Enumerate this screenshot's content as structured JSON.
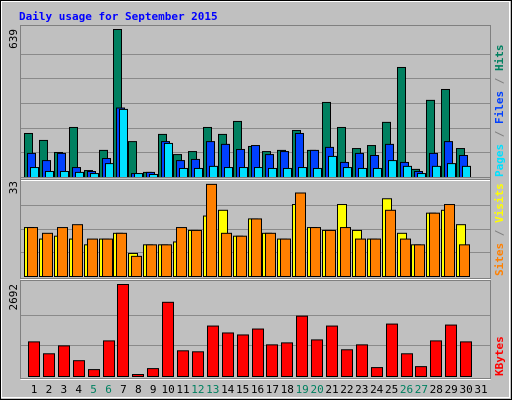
{
  "title": "Daily usage for September 2015",
  "legend_separator": " / ",
  "chart_data": [
    {
      "type": "bar",
      "ylim": [
        0,
        639
      ],
      "yticks": [
        639
      ],
      "grid_divisions": 6,
      "series": [
        {
          "name": "Pages",
          "color": "#00e0ff",
          "values": [
            43,
            26,
            26,
            22,
            17,
            60,
            294,
            17,
            13,
            147,
            39,
            39,
            48,
            43,
            43,
            43,
            39,
            39,
            43,
            39,
            91,
            43,
            39,
            39,
            73,
            48,
            17,
            48,
            60,
            48,
            0
          ]
        },
        {
          "name": "Files",
          "color": "#0040ff",
          "values": [
            104,
            73,
            104,
            43,
            26,
            82,
            300,
            17,
            22,
            155,
            73,
            78,
            155,
            143,
            121,
            138,
            99,
            112,
            190,
            117,
            130,
            65,
            104,
            95,
            143,
            65,
            26,
            104,
            155,
            95,
            0
          ]
        },
        {
          "name": "Hits",
          "color": "#008060",
          "values": [
            190,
            160,
            108,
            216,
            30,
            117,
            639,
            155,
            22,
            186,
            99,
            112,
            216,
            186,
            242,
            134,
            112,
            117,
            203,
            117,
            324,
            216,
            125,
            138,
            238,
            475,
            35,
            333,
            380,
            125,
            0
          ]
        }
      ]
    },
    {
      "type": "bar",
      "ylim": [
        0,
        33
      ],
      "yticks": [
        33
      ],
      "grid_divisions": 4,
      "series": [
        {
          "name": "Sites",
          "color": "#ff8000",
          "values": [
            17,
            15,
            17,
            18,
            13,
            13,
            15,
            7,
            11,
            11,
            17,
            16,
            32,
            15,
            14,
            20,
            15,
            13,
            29,
            17,
            16,
            17,
            13,
            13,
            23,
            13,
            11,
            22,
            25,
            11,
            0
          ]
        },
        {
          "name": "Visits",
          "color": "#ffff00",
          "values": [
            17,
            13,
            14,
            13,
            11,
            13,
            15,
            8,
            11,
            11,
            12,
            16,
            21,
            23,
            14,
            20,
            15,
            13,
            25,
            17,
            16,
            25,
            16,
            13,
            27,
            15,
            11,
            22,
            23,
            18,
            0
          ]
        }
      ]
    },
    {
      "type": "bar",
      "ylim": [
        0,
        2692
      ],
      "yticks": [
        2692
      ],
      "grid_divisions": 3,
      "categories": [
        "1",
        "2",
        "3",
        "4",
        "5",
        "6",
        "7",
        "8",
        "9",
        "10",
        "11",
        "12",
        "13",
        "14",
        "15",
        "16",
        "17",
        "18",
        "19",
        "20",
        "21",
        "22",
        "23",
        "24",
        "25",
        "26",
        "27",
        "28",
        "29",
        "30",
        "31"
      ],
      "category_colors": [
        "#000000",
        "#000000",
        "#000000",
        "#000000",
        "#008060",
        "#008060",
        "#000000",
        "#000000",
        "#000000",
        "#000000",
        "#000000",
        "#008060",
        "#008060",
        "#000000",
        "#000000",
        "#000000",
        "#000000",
        "#000000",
        "#008060",
        "#008060",
        "#000000",
        "#000000",
        "#000000",
        "#000000",
        "#000000",
        "#008060",
        "#008060",
        "#000000",
        "#000000",
        "#000000",
        "#000000"
      ],
      "series": [
        {
          "name": "KBytes",
          "color": "#ff0000",
          "values": [
            1013,
            665,
            896,
            463,
            202,
            1042,
            2692,
            58,
            231,
            2171,
            752,
            723,
            1476,
            1274,
            1216,
            1389,
            926,
            984,
            1766,
            1071,
            1476,
            782,
            926,
            261,
            1534,
            665,
            289,
            1042,
            1505,
            1013,
            0
          ]
        }
      ]
    }
  ]
}
